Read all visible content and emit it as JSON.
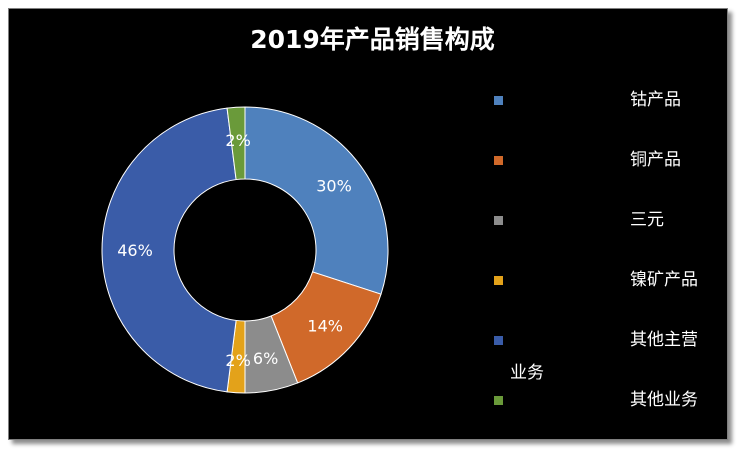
{
  "chart_data": {
    "type": "pie",
    "title": "2019年产品销售构成",
    "legend_position": "right",
    "categories": [
      "钴产品",
      "铜产品",
      "三元",
      "镍矿产品",
      "其他主营业务",
      "其他业务"
    ],
    "legend_lines": [
      [
        "钴产品"
      ],
      [
        "铜产品"
      ],
      [
        "三元"
      ],
      [
        "镍矿产品"
      ],
      [
        "其他主营",
        "业务"
      ],
      [
        "其他业务"
      ]
    ],
    "values": [
      30,
      14,
      6,
      2,
      46,
      2
    ],
    "labels": [
      "30%",
      "14%",
      "6%",
      "2%",
      "46%",
      "2%"
    ],
    "colors": [
      "#4f81bd",
      "#d0692a",
      "#8c8c8c",
      "#e3a21a",
      "#3a5ca8",
      "#6a9a3a"
    ],
    "donut": true
  }
}
